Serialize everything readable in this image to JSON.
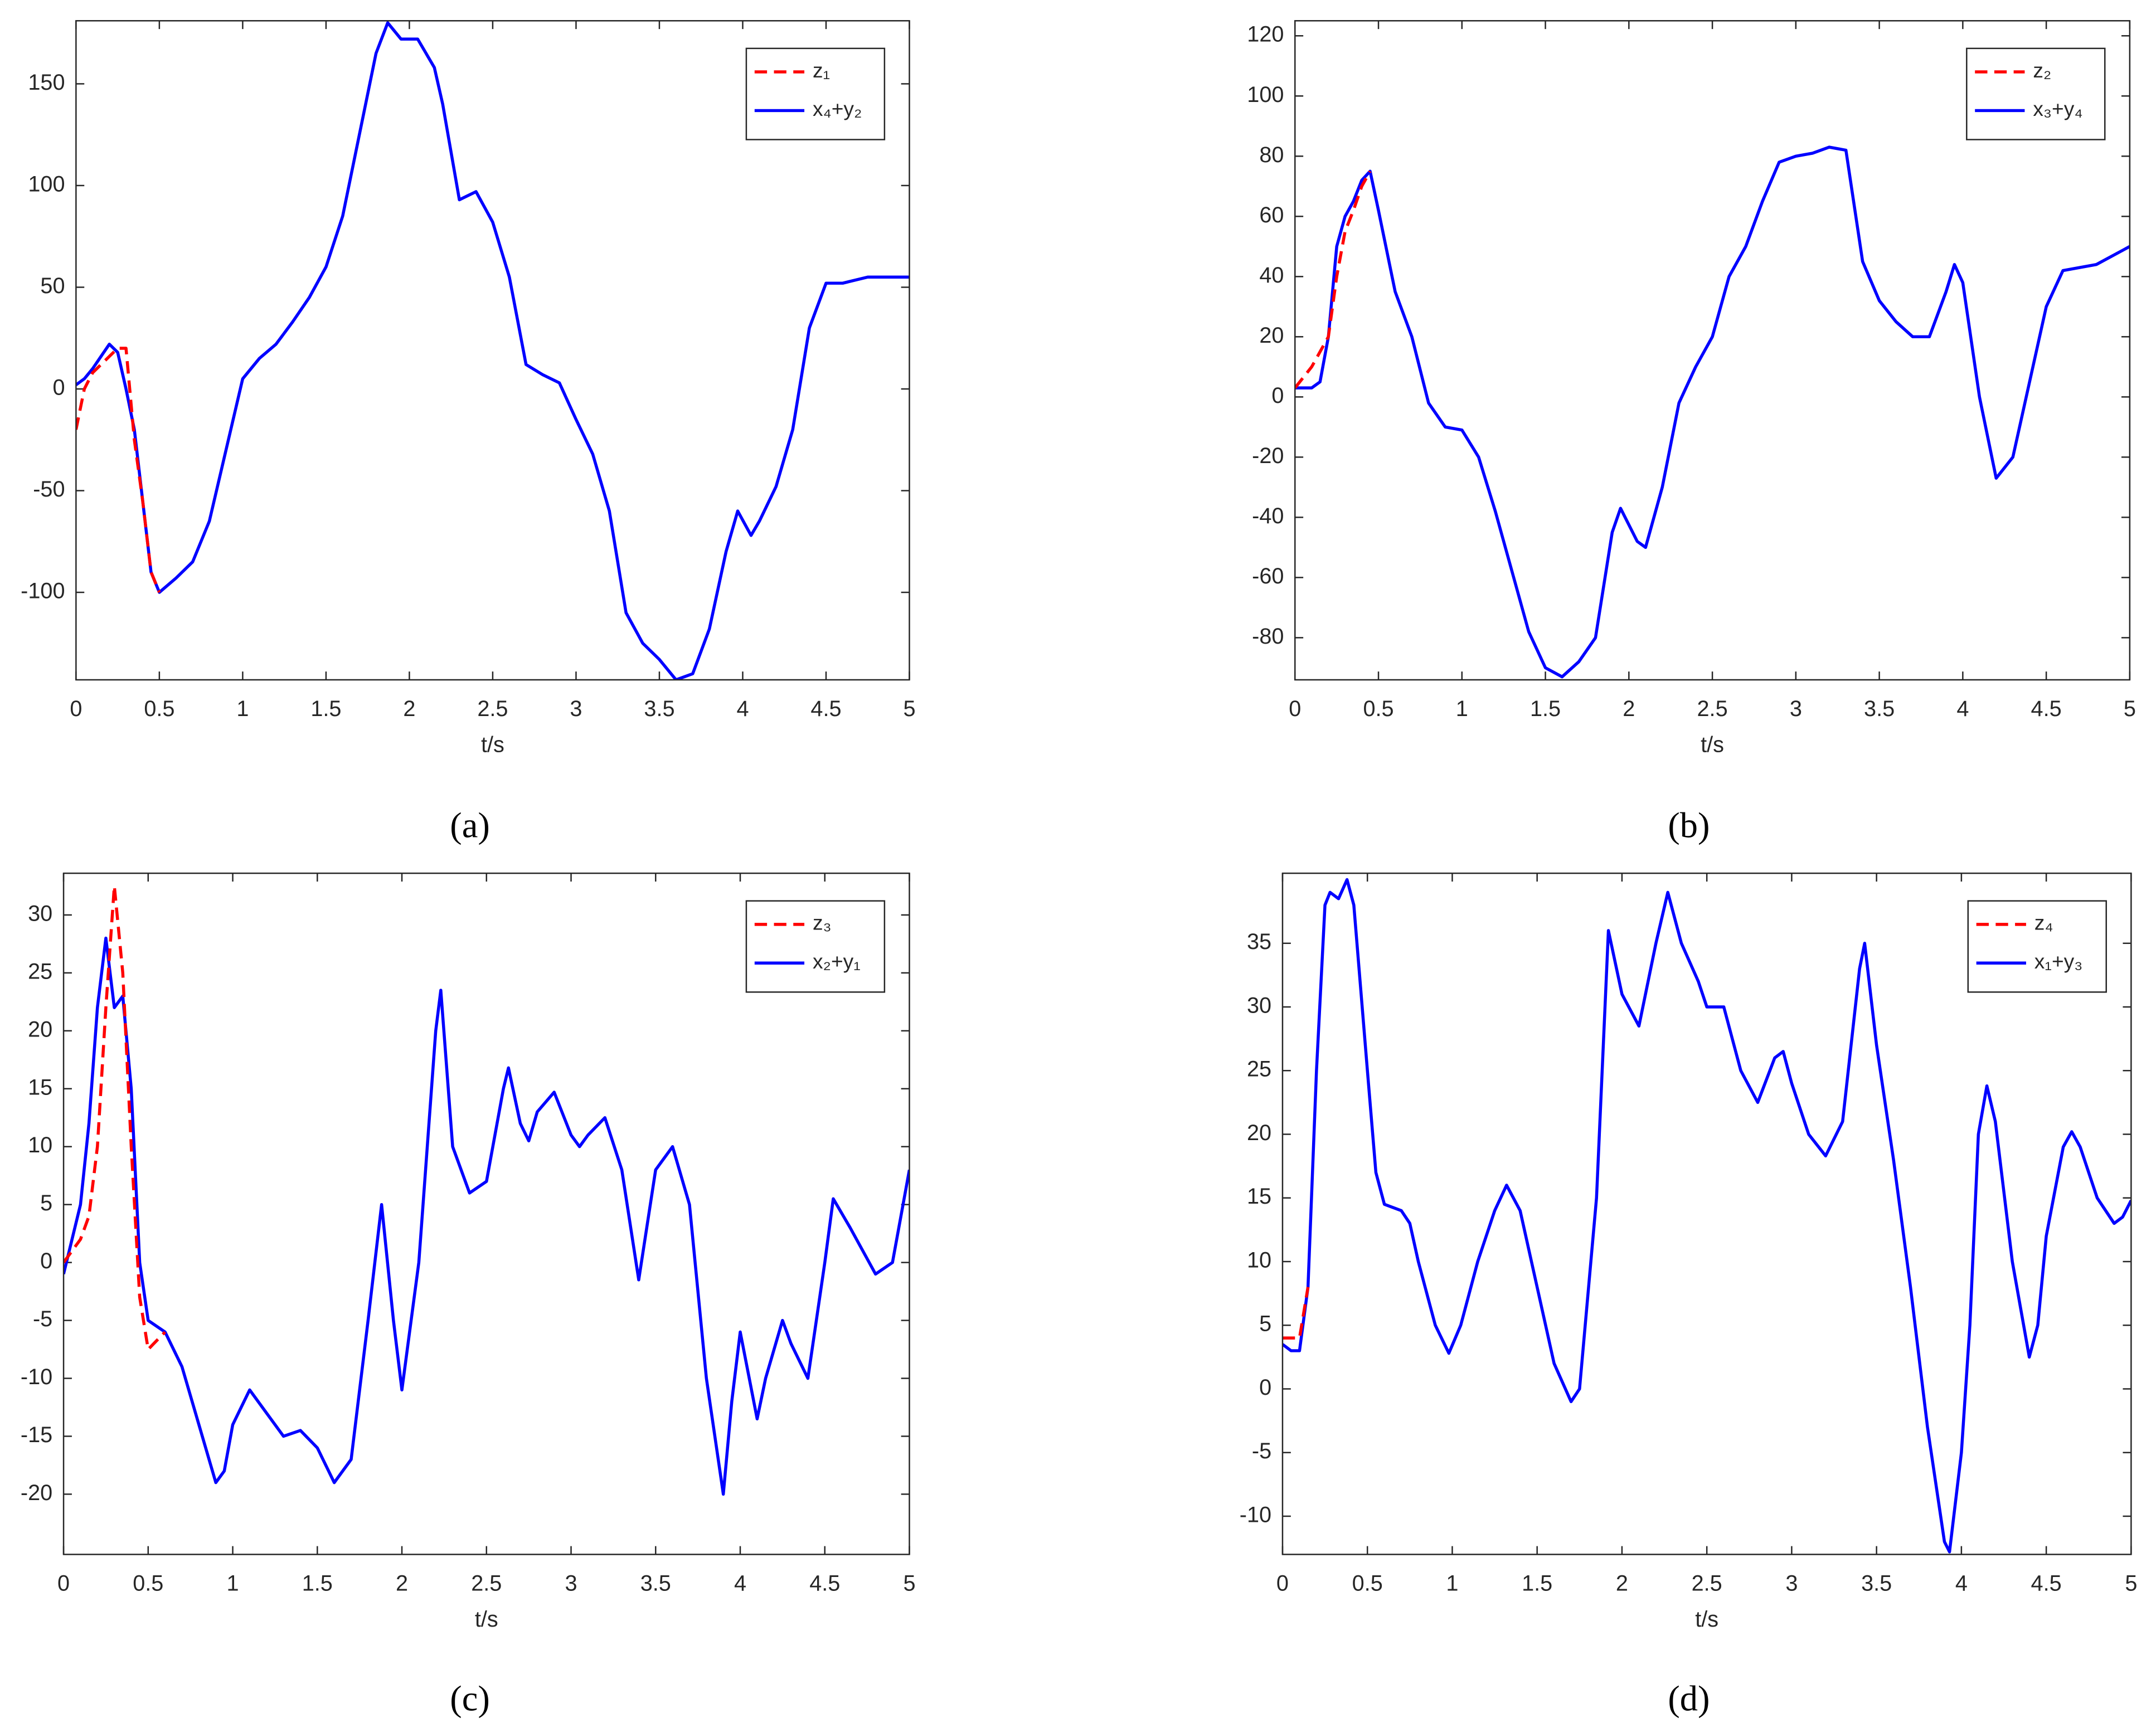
{
  "chart_data": [
    {
      "type": "line",
      "caption": "(a)",
      "xlabel": "t/s",
      "xlim": [
        0,
        5
      ],
      "ylim": [
        -143,
        181
      ],
      "xticks": [
        0,
        0.5,
        1,
        1.5,
        2,
        2.5,
        3,
        3.5,
        4,
        4.5,
        5
      ],
      "yticks": [
        -100,
        -50,
        0,
        50,
        100,
        150
      ],
      "legend": "northeast",
      "grid": false,
      "series": [
        {
          "name": "z₁",
          "color": "#ff0000",
          "dash": true,
          "x": [
            0,
            0.05,
            0.1,
            0.15,
            0.2,
            0.25,
            0.3,
            0.35,
            0.4,
            0.45,
            0.5
          ],
          "values": [
            -20,
            0,
            8,
            12,
            16,
            20,
            20,
            -25,
            -55,
            -90,
            -100
          ]
        },
        {
          "name": "x₄+y₂",
          "color": "#0000ff",
          "dash": false,
          "x": [
            0,
            0.05,
            0.1,
            0.15,
            0.2,
            0.25,
            0.3,
            0.35,
            0.4,
            0.45,
            0.5,
            0.6,
            0.7,
            0.8,
            0.9,
            1,
            1.1,
            1.2,
            1.3,
            1.4,
            1.5,
            1.6,
            1.7,
            1.8,
            1.87,
            1.95,
            2.05,
            2.15,
            2.2,
            2.3,
            2.4,
            2.5,
            2.6,
            2.7,
            2.8,
            2.9,
            3,
            3.1,
            3.2,
            3.3,
            3.4,
            3.5,
            3.6,
            3.7,
            3.8,
            3.9,
            3.97,
            4.05,
            4.1,
            4.2,
            4.3,
            4.4,
            4.5,
            4.6,
            4.75,
            5
          ],
          "values": [
            2,
            5,
            10,
            16,
            22,
            18,
            0,
            -20,
            -55,
            -90,
            -100,
            -93,
            -85,
            -65,
            -30,
            5,
            15,
            22,
            33,
            45,
            60,
            85,
            125,
            165,
            180,
            172,
            172,
            158,
            140,
            93,
            97,
            82,
            55,
            12,
            7,
            3,
            -15,
            -32,
            -60,
            -110,
            -125,
            -133,
            -143,
            -140,
            -118,
            -80,
            -60,
            -72,
            -65,
            -48,
            -20,
            30,
            52,
            52,
            55,
            55
          ]
        }
      ]
    },
    {
      "type": "line",
      "caption": "(b)",
      "xlabel": "t/s",
      "xlim": [
        0,
        5
      ],
      "ylim": [
        -94,
        125
      ],
      "xticks": [
        0,
        0.5,
        1,
        1.5,
        2,
        2.5,
        3,
        3.5,
        4,
        4.5,
        5
      ],
      "yticks": [
        -80,
        -60,
        -40,
        -20,
        0,
        20,
        40,
        60,
        80,
        100,
        120
      ],
      "legend": "northeast",
      "grid": false,
      "series": [
        {
          "name": "z₂",
          "color": "#ff0000",
          "dash": true,
          "x": [
            0,
            0.1,
            0.15,
            0.2,
            0.25,
            0.3,
            0.35,
            0.4,
            0.45
          ],
          "values": [
            3,
            10,
            15,
            20,
            40,
            55,
            62,
            70,
            75
          ]
        },
        {
          "name": "x₃+y₄",
          "color": "#0000ff",
          "dash": false,
          "x": [
            0,
            0.1,
            0.15,
            0.2,
            0.25,
            0.3,
            0.35,
            0.4,
            0.45,
            0.5,
            0.6,
            0.7,
            0.8,
            0.9,
            1,
            1.1,
            1.2,
            1.3,
            1.4,
            1.5,
            1.6,
            1.7,
            1.8,
            1.9,
            1.95,
            2.05,
            2.1,
            2.2,
            2.3,
            2.4,
            2.5,
            2.6,
            2.7,
            2.8,
            2.9,
            3,
            3.1,
            3.2,
            3.3,
            3.4,
            3.5,
            3.6,
            3.7,
            3.8,
            3.9,
            3.95,
            4,
            4.1,
            4.2,
            4.3,
            4.4,
            4.5,
            4.6,
            4.8,
            5
          ],
          "values": [
            3,
            3,
            5,
            20,
            50,
            60,
            65,
            72,
            75,
            62,
            35,
            20,
            -2,
            -10,
            -11,
            -20,
            -38,
            -58,
            -78,
            -90,
            -93,
            -88,
            -80,
            -45,
            -37,
            -48,
            -50,
            -30,
            -2,
            10,
            20,
            40,
            50,
            65,
            78,
            80,
            81,
            83,
            82,
            45,
            32,
            25,
            20,
            20,
            35,
            44,
            38,
            0,
            -27,
            -20,
            5,
            30,
            42,
            44,
            50
          ]
        }
      ]
    },
    {
      "type": "line",
      "caption": "(c)",
      "xlabel": "t/s",
      "xlim": [
        0,
        5
      ],
      "ylim": [
        -25.2,
        33.6
      ],
      "xticks": [
        0,
        0.5,
        1,
        1.5,
        2,
        2.5,
        3,
        3.5,
        4,
        4.5,
        5
      ],
      "yticks": [
        -20,
        -15,
        -10,
        -5,
        0,
        5,
        10,
        15,
        20,
        25,
        30
      ],
      "legend": "northeast",
      "grid": false,
      "series": [
        {
          "name": "z₃",
          "color": "#ff0000",
          "dash": true,
          "x": [
            0,
            0.1,
            0.15,
            0.2,
            0.25,
            0.3,
            0.35,
            0.4,
            0.45,
            0.5,
            0.6
          ],
          "values": [
            0,
            2,
            4,
            10,
            22,
            32.5,
            25,
            10,
            -3,
            -7.5,
            -6
          ]
        },
        {
          "name": "x₂+y₁",
          "color": "#0000ff",
          "dash": false,
          "x": [
            0,
            0.1,
            0.15,
            0.2,
            0.25,
            0.3,
            0.35,
            0.4,
            0.45,
            0.5,
            0.6,
            0.7,
            0.8,
            0.9,
            0.95,
            1,
            1.1,
            1.2,
            1.3,
            1.4,
            1.5,
            1.6,
            1.7,
            1.8,
            1.88,
            1.95,
            2,
            2.1,
            2.2,
            2.23,
            2.3,
            2.4,
            2.5,
            2.6,
            2.63,
            2.7,
            2.75,
            2.8,
            2.9,
            3,
            3.05,
            3.1,
            3.2,
            3.3,
            3.4,
            3.5,
            3.6,
            3.7,
            3.8,
            3.9,
            3.95,
            4,
            4.1,
            4.15,
            4.25,
            4.3,
            4.4,
            4.5,
            4.55,
            4.65,
            4.8,
            4.9,
            5
          ],
          "values": [
            -1,
            5,
            12,
            22,
            28,
            22,
            23,
            15,
            0,
            -5,
            -6,
            -9,
            -14,
            -19,
            -18,
            -14,
            -11,
            -13,
            -15,
            -14.5,
            -16,
            -19,
            -17,
            -5,
            5,
            -5,
            -11,
            0,
            20,
            23.5,
            10,
            6,
            7,
            15,
            16.8,
            12,
            10.5,
            13,
            14.7,
            11,
            10,
            11,
            12.5,
            8,
            -1.5,
            8,
            10,
            5,
            -10,
            -20,
            -12,
            -6,
            -13.5,
            -10,
            -5,
            -7,
            -10,
            0,
            5.5,
            3,
            -1,
            0,
            8
          ]
        }
      ]
    },
    {
      "type": "line",
      "caption": "(d)",
      "xlabel": "t/s",
      "xlim": [
        0,
        5
      ],
      "ylim": [
        -13,
        40.5
      ],
      "xticks": [
        0,
        0.5,
        1,
        1.5,
        2,
        2.5,
        3,
        3.5,
        4,
        4.5,
        5
      ],
      "yticks": [
        -10,
        -5,
        0,
        5,
        10,
        15,
        20,
        25,
        30,
        35
      ],
      "legend": "northeast",
      "grid": false,
      "series": [
        {
          "name": "z₄",
          "color": "#ff0000",
          "dash": true,
          "x": [
            0,
            0.05,
            0.1,
            0.15
          ],
          "values": [
            4,
            4,
            4,
            8
          ]
        },
        {
          "name": "x₁+y₃",
          "color": "#0000ff",
          "dash": false,
          "x": [
            0,
            0.05,
            0.1,
            0.15,
            0.2,
            0.25,
            0.28,
            0.33,
            0.38,
            0.42,
            0.5,
            0.55,
            0.6,
            0.7,
            0.75,
            0.8,
            0.9,
            0.98,
            1.05,
            1.15,
            1.25,
            1.32,
            1.4,
            1.5,
            1.6,
            1.7,
            1.75,
            1.85,
            1.92,
            2,
            2.1,
            2.2,
            2.27,
            2.35,
            2.45,
            2.5,
            2.6,
            2.7,
            2.8,
            2.9,
            2.95,
            3,
            3.1,
            3.2,
            3.3,
            3.4,
            3.43,
            3.5,
            3.6,
            3.7,
            3.8,
            3.9,
            3.93,
            4,
            4.05,
            4.1,
            4.15,
            4.2,
            4.3,
            4.4,
            4.45,
            4.5,
            4.6,
            4.65,
            4.7,
            4.8,
            4.9,
            4.95,
            5
          ],
          "values": [
            3.5,
            3,
            3,
            8,
            25,
            38,
            39,
            38.5,
            40,
            38,
            25,
            17,
            14.5,
            14,
            13,
            10,
            5,
            2.8,
            5,
            10,
            14,
            16,
            14,
            8,
            2,
            -1,
            0,
            15,
            36,
            31,
            28.5,
            35,
            39,
            35,
            32,
            30,
            30,
            25,
            22.5,
            26,
            26.5,
            24,
            20,
            18.3,
            21,
            33,
            35,
            27,
            18,
            8,
            -3,
            -12,
            -12.8,
            -5,
            5,
            20,
            23.8,
            21,
            10,
            2.5,
            5,
            12,
            19,
            20.2,
            19,
            15,
            13,
            13.5,
            14.8
          ]
        }
      ]
    }
  ]
}
